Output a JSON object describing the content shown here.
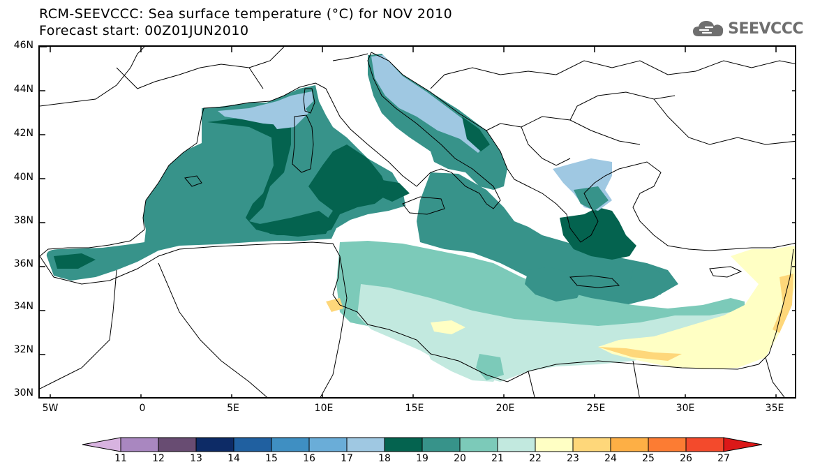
{
  "title": {
    "line1": "RCM-SEEVCCC: Sea surface temperature (°C) for NOV 2010",
    "line2": "Forecast start: 00Z01JUN2010"
  },
  "logo": {
    "text": "SEEVCCC",
    "icon": "cloud-logo-icon"
  },
  "map": {
    "lat_labels": [
      "46N",
      "44N",
      "42N",
      "40N",
      "38N",
      "36N",
      "34N",
      "32N",
      "30N"
    ],
    "lon_labels": [
      "5W",
      "0",
      "5E",
      "10E",
      "15E",
      "20E",
      "25E",
      "30E",
      "35E"
    ],
    "lat_range": [
      30,
      46
    ],
    "lon_range": [
      -5.5,
      36.3
    ],
    "land_color": "#ffffff",
    "coastline_color": "#000000"
  },
  "colorbar": {
    "labels": [
      "11",
      "12",
      "13",
      "14",
      "15",
      "16",
      "17",
      "18",
      "19",
      "20",
      "21",
      "22",
      "23",
      "24",
      "25",
      "26",
      "27"
    ],
    "colors": [
      "#d8b3e0",
      "#a987c0",
      "#684c72",
      "#0d2b66",
      "#2060a0",
      "#3f8fc2",
      "#6aadd8",
      "#9fc8e2",
      "#04634f",
      "#37938a",
      "#7ccab9",
      "#c2e9df",
      "#ffffc4",
      "#fed77a",
      "#fdaf45",
      "#fc7c33",
      "#f34a2c",
      "#dc1818"
    ]
  }
}
